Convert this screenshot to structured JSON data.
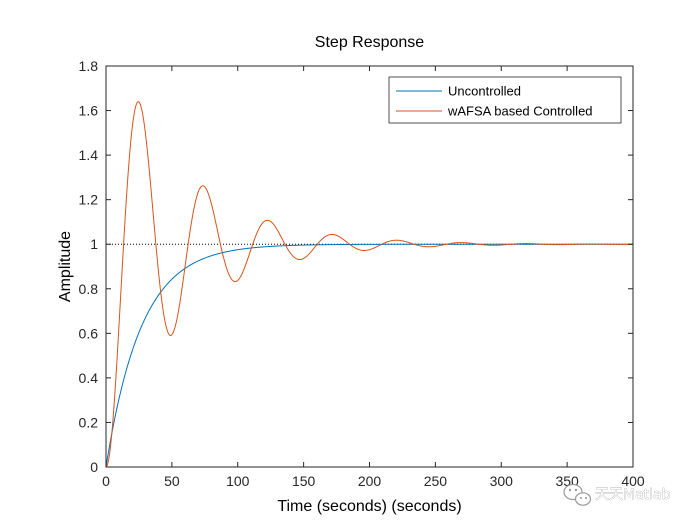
{
  "chart_data": {
    "type": "line",
    "title": "Step Response",
    "xlabel": "Time (seconds) (seconds)",
    "ylabel": "Amplitude",
    "xlim": [
      0,
      400
    ],
    "ylim": [
      0,
      1.8
    ],
    "xticks": [
      0,
      50,
      100,
      150,
      200,
      250,
      300,
      350,
      400
    ],
    "yticks": [
      0,
      0.2,
      0.4,
      0.6,
      0.8,
      1,
      1.2,
      1.4,
      1.6,
      1.8
    ],
    "grid": false,
    "legend_position": "top-right",
    "reference_line": {
      "y": 1,
      "style": "dotted"
    },
    "series": [
      {
        "name": "Uncontrolled",
        "color": "#0072BD",
        "model": "first-order",
        "time_constant": 27,
        "final_value": 1
      },
      {
        "name": "wAFSA based Controlled",
        "color": "#D95319",
        "model": "second-order underdamped",
        "peak_value": 1.64,
        "peak_time": 24,
        "damped_period": 49,
        "final_value": 1
      }
    ]
  },
  "watermark": {
    "text": "天天Matlab",
    "icon": "wechat-logo-icon"
  }
}
